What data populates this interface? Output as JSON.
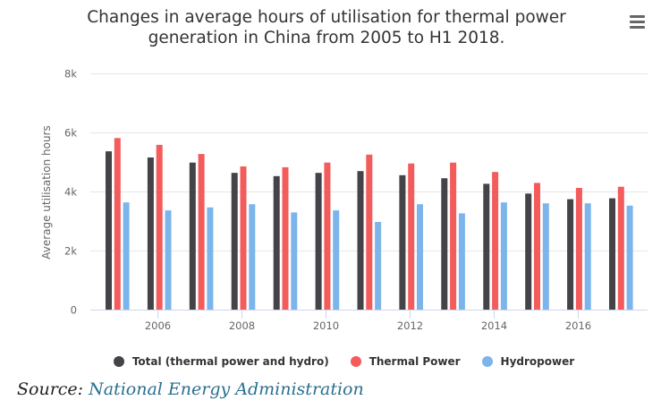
{
  "header": {
    "title_line1": "Changes in average hours of utilisation for thermal power",
    "title_line2": "generation in China from 2005 to H1 2018.",
    "menu_icon": "hamburger-menu-icon"
  },
  "footer": {
    "source_label": "Source:",
    "source_link": "National Energy Administration"
  },
  "chart_data": {
    "type": "bar",
    "title": "Changes in average hours of utilisation for thermal power generation in China from 2005 to H1 2018.",
    "xlabel": "",
    "ylabel": "Average utilisation hours",
    "ylim": [
      0,
      8000
    ],
    "yticks": [
      0,
      2000,
      4000,
      6000,
      8000
    ],
    "ytick_labels": [
      "0",
      "2k",
      "4k",
      "6k",
      "8k"
    ],
    "categories": [
      "2005",
      "2006",
      "2007",
      "2008",
      "2009",
      "2010",
      "2011",
      "2012",
      "2013",
      "2014",
      "2015",
      "2016",
      "2017"
    ],
    "xtick_labels": [
      "2006",
      "2008",
      "2010",
      "2012",
      "2014",
      "2016"
    ],
    "grid": true,
    "legend_position": "bottom",
    "series": [
      {
        "name": "Total (thermal power and hydro)",
        "color": "#434348",
        "values": [
          5360,
          5150,
          4980,
          4630,
          4520,
          4630,
          4690,
          4550,
          4450,
          4260,
          3930,
          3740,
          3770
        ]
      },
      {
        "name": "Thermal Power",
        "color": "#f45b5b",
        "values": [
          5810,
          5580,
          5270,
          4850,
          4820,
          4980,
          5250,
          4950,
          4980,
          4660,
          4290,
          4120,
          4160
        ]
      },
      {
        "name": "Hydropower",
        "color": "#7cb5ec",
        "values": [
          3630,
          3360,
          3460,
          3570,
          3290,
          3360,
          2970,
          3570,
          3260,
          3630,
          3600,
          3600,
          3520
        ]
      }
    ]
  }
}
